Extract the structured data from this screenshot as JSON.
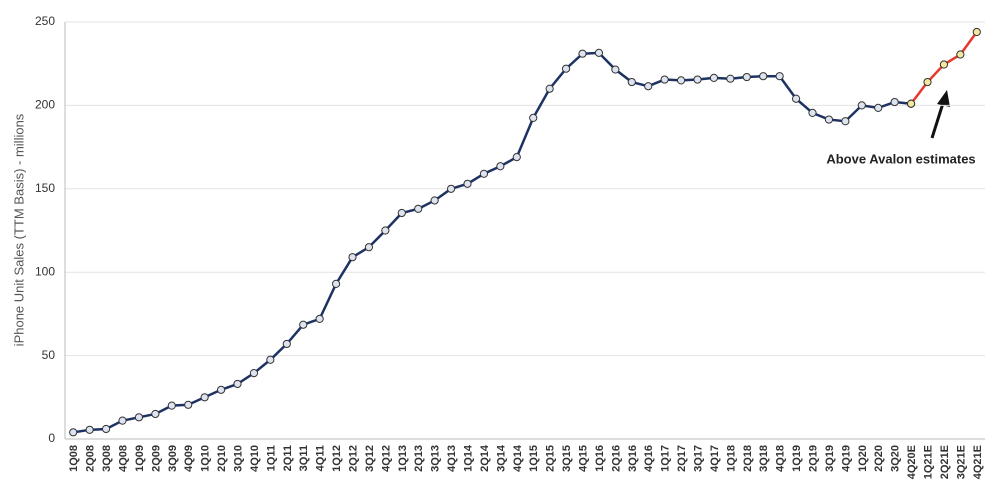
{
  "chart_data": {
    "type": "line",
    "ylabel": "iPhone Unit Sales (TTM Basis) - millions",
    "annotation": "Above Avalon estimates",
    "categories": [
      "1Q08",
      "2Q08",
      "3Q08",
      "4Q08",
      "1Q09",
      "2Q09",
      "3Q09",
      "4Q09",
      "1Q10",
      "2Q10",
      "3Q10",
      "4Q10",
      "1Q11",
      "2Q11",
      "3Q11",
      "4Q11",
      "1Q12",
      "2Q12",
      "3Q12",
      "4Q12",
      "1Q13",
      "2Q13",
      "3Q13",
      "4Q13",
      "1Q14",
      "2Q14",
      "3Q14",
      "4Q14",
      "1Q15",
      "2Q15",
      "3Q15",
      "4Q15",
      "1Q16",
      "2Q16",
      "3Q16",
      "4Q16",
      "1Q17",
      "2Q17",
      "3Q17",
      "4Q17",
      "1Q18",
      "2Q18",
      "3Q18",
      "4Q18",
      "1Q19",
      "2Q19",
      "3Q19",
      "4Q19",
      "1Q20",
      "2Q20",
      "3Q20",
      "4Q20E",
      "1Q21E",
      "2Q21E",
      "3Q21E",
      "4Q21E"
    ],
    "series": [
      {
        "color": "#1f3264",
        "marker_color": "#dde3ef",
        "values": [
          4,
          5.5,
          6,
          11,
          13,
          15,
          20,
          20.5,
          25,
          29.5,
          33,
          39.5,
          47.5,
          57,
          68.5,
          72,
          93,
          109,
          115,
          125,
          135.5,
          138,
          143,
          150,
          153,
          159,
          163.5,
          169,
          192.5,
          210,
          222,
          231,
          231.5,
          221.5,
          214,
          211.5,
          215.5,
          215,
          215.5,
          216.5,
          216,
          217,
          217.5,
          217.5,
          204,
          195.5,
          191.5,
          190.5,
          200,
          198.5,
          202,
          201,
          null,
          null,
          null,
          null
        ]
      },
      {
        "color": "#e8392b",
        "marker_color": "#f2e79c",
        "values": [
          null,
          null,
          null,
          null,
          null,
          null,
          null,
          null,
          null,
          null,
          null,
          null,
          null,
          null,
          null,
          null,
          null,
          null,
          null,
          null,
          null,
          null,
          null,
          null,
          null,
          null,
          null,
          null,
          null,
          null,
          null,
          null,
          null,
          null,
          null,
          null,
          null,
          null,
          null,
          null,
          null,
          null,
          null,
          null,
          null,
          null,
          null,
          null,
          null,
          null,
          null,
          201,
          214,
          224.5,
          230.5,
          244
        ]
      }
    ],
    "ylim": [
      0,
      250
    ],
    "yticks": [
      0,
      50,
      100,
      150,
      200,
      250
    ],
    "grid": true
  }
}
